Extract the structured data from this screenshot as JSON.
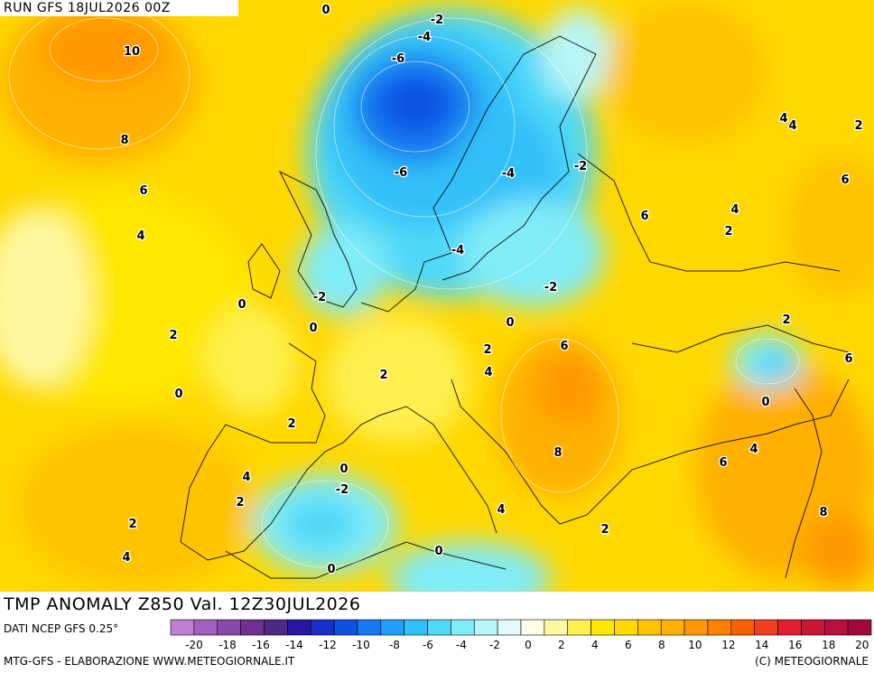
{
  "header": {
    "run_label": "RUN GFS 18JUL2026 00Z"
  },
  "title": "TMP ANOMALY Z850 Val. 12Z30JUL2026",
  "footer": {
    "source": "DATI NCEP GFS 0.25°",
    "credit_left": "MTG-GFS - ELABORAZIONE WWW.METEOGIORNALE.IT",
    "credit_right": "(C) METEOGIORNALE"
  },
  "legend": {
    "colors": [
      "#c080d0",
      "#a060c0",
      "#8848a8",
      "#703090",
      "#502888",
      "#2818a0",
      "#1830c8",
      "#1050e0",
      "#1878f0",
      "#20a0f8",
      "#30c0f8",
      "#50d8f8",
      "#80ecf8",
      "#b8f6f8",
      "#e0fbfa",
      "#fffde8",
      "#fff8a0",
      "#fff050",
      "#ffe800",
      "#ffd800",
      "#ffc400",
      "#ffb000",
      "#ff9800",
      "#ff8000",
      "#f86000",
      "#f04020",
      "#e02030",
      "#c81838",
      "#b81040",
      "#a00840"
    ],
    "tick_labels": [
      "-20",
      "-18",
      "-16",
      "-14",
      "-12",
      "-10",
      "-8",
      "-6",
      "-4",
      "-2",
      "0",
      "2",
      "4",
      "6",
      "8",
      "10",
      "12",
      "14",
      "16",
      "18",
      "20"
    ]
  },
  "contour_labels": [
    {
      "text": "0"
    },
    {
      "text": "-2"
    },
    {
      "text": "-4"
    },
    {
      "text": "-6"
    },
    {
      "text": "10"
    },
    {
      "text": "8"
    },
    {
      "text": "6"
    },
    {
      "text": "4"
    },
    {
      "text": "0"
    },
    {
      "text": "2"
    },
    {
      "text": "0"
    },
    {
      "text": "-6"
    },
    {
      "text": "-4"
    },
    {
      "text": "-2"
    },
    {
      "text": "-4"
    },
    {
      "text": "-2"
    },
    {
      "text": "-2"
    },
    {
      "text": "0"
    },
    {
      "text": "0"
    },
    {
      "text": "2"
    },
    {
      "text": "4"
    },
    {
      "text": "2"
    },
    {
      "text": "6"
    },
    {
      "text": "8"
    },
    {
      "text": "2"
    },
    {
      "text": "4"
    },
    {
      "text": "2"
    },
    {
      "text": "0"
    },
    {
      "text": "-2"
    },
    {
      "text": "4"
    },
    {
      "text": "0"
    },
    {
      "text": "0"
    },
    {
      "text": "4"
    },
    {
      "text": "2"
    },
    {
      "text": "6"
    },
    {
      "text": "4"
    },
    {
      "text": "2"
    },
    {
      "text": "4"
    },
    {
      "text": "4"
    },
    {
      "text": "2"
    },
    {
      "text": "6"
    },
    {
      "text": "2"
    },
    {
      "text": "6"
    },
    {
      "text": "0"
    },
    {
      "text": "6"
    },
    {
      "text": "4"
    },
    {
      "text": "8"
    },
    {
      "text": "2"
    }
  ]
}
